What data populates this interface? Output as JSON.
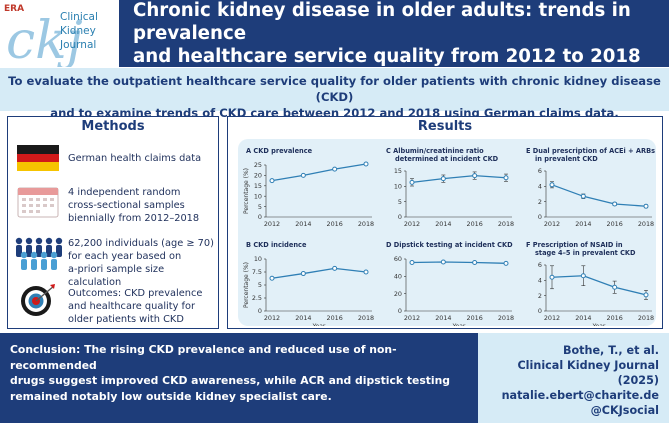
{
  "header": {
    "title_line1": "Chronic kidney disease in older adults: trends in prevalence",
    "title_line2": "and healthcare service quality from 2012 to 2018",
    "journal_line1": "Clinical",
    "journal_line2": "Kidney",
    "journal_line3": "Journal",
    "logo_letters": "ckj",
    "era_mark": "ERA"
  },
  "objective": {
    "line1": "To evaluate the outpatient healthcare service quality for older patients with chronic kidney disease (CKD)",
    "line2": "and to examine trends of CKD care between 2012 and 2018 using German claims data."
  },
  "methods": {
    "title": "Methods",
    "items": [
      {
        "icon": "germany-flag-icon",
        "lines": [
          "German health claims data"
        ]
      },
      {
        "icon": "calendar-icon",
        "lines": [
          "4 independent random",
          "cross-sectional samples",
          "biennially from 2012–2018"
        ]
      },
      {
        "icon": "people-group-icon",
        "lines": [
          "62,200 individuals (age ≥ 70)",
          "for each year based on",
          "a-priori sample size calculation"
        ]
      },
      {
        "icon": "target-icon",
        "lines": [
          "Outcomes: CKD prevalence",
          "and healthcare quality for",
          "older patients with CKD"
        ]
      }
    ]
  },
  "results": {
    "title": "Results"
  },
  "chart_data": [
    {
      "type": "line",
      "letter": "A",
      "title": [
        "CKD prevalence"
      ],
      "x": [
        2012,
        2014,
        2016,
        2018
      ],
      "values": [
        17.5,
        20,
        23,
        25.5
      ],
      "error": [
        0.3,
        0.3,
        0.3,
        0.3
      ],
      "ylabel": "Percentage (%)",
      "xlabel": "",
      "ylim": [
        0,
        25
      ],
      "yticks": [
        0,
        5,
        10,
        15,
        20,
        25
      ]
    },
    {
      "type": "line",
      "letter": "C",
      "title": [
        "Albumin/creatinine ratio",
        "determined at incident CKD"
      ],
      "x": [
        2012,
        2014,
        2016,
        2018
      ],
      "values": [
        11.3,
        12.5,
        13.5,
        12.8
      ],
      "error": [
        1.2,
        1.2,
        1.2,
        1.2
      ],
      "ylabel": "",
      "xlabel": "",
      "ylim": [
        0,
        15
      ],
      "yticks": [
        0,
        5,
        10,
        15
      ]
    },
    {
      "type": "line",
      "letter": "E",
      "title": [
        "Dual prescription of ACEi + ARBs",
        "in prevalent CKD"
      ],
      "x": [
        2012,
        2014,
        2016,
        2018
      ],
      "values": [
        4.2,
        2.7,
        1.7,
        1.4
      ],
      "error": [
        0.4,
        0.3,
        0.2,
        0.2
      ],
      "ylabel": "",
      "xlabel": "",
      "ylim": [
        0,
        6
      ],
      "yticks": [
        0,
        2,
        4,
        6
      ]
    },
    {
      "type": "line",
      "letter": "B",
      "title": [
        "CKD incidence"
      ],
      "x": [
        2012,
        2014,
        2016,
        2018
      ],
      "values": [
        6.3,
        7.2,
        8.2,
        7.5
      ],
      "error": [
        0.2,
        0.2,
        0.2,
        0.2
      ],
      "ylabel": "Percentage (%)",
      "xlabel": "Year",
      "ylim": [
        0,
        10
      ],
      "yticks": [
        0,
        2.5,
        5,
        7.5,
        10
      ]
    },
    {
      "type": "line",
      "letter": "D",
      "title": [
        "Dipstick testing at incident CKD"
      ],
      "x": [
        2012,
        2014,
        2016,
        2018
      ],
      "values": [
        56,
        56.5,
        56,
        55
      ],
      "error": [
        1,
        1,
        1,
        1
      ],
      "ylabel": "",
      "xlabel": "Year",
      "ylim": [
        0,
        60
      ],
      "yticks": [
        0,
        20,
        40,
        60
      ]
    },
    {
      "type": "line",
      "letter": "F",
      "title": [
        "Prescription of NSAID in",
        "stage 4–5 in prevalent CKD"
      ],
      "x": [
        2012,
        2014,
        2016,
        2018
      ],
      "values": [
        4.4,
        4.6,
        3.1,
        2.1
      ],
      "error": [
        1.5,
        1.3,
        0.8,
        0.6
      ],
      "ylabel": "",
      "xlabel": "Year",
      "ylim": [
        0,
        6
      ],
      "yticks": [
        0,
        2,
        4,
        6
      ]
    }
  ],
  "conclusion": {
    "line1": "Conclusion: The rising CKD prevalence and reduced use of non-recommended",
    "line2": "drugs suggest improved CKD awareness, while ACR and dipstick testing",
    "line3": "remained notably low outside kidney specialist care."
  },
  "citation": {
    "line1": "Bothe, T., et al.",
    "line2": "Clinical Kidney Journal (2025)",
    "line3": "natalie.ebert@charite.de",
    "line4": "@CKJsocial"
  },
  "colors": {
    "navy": "#1e3d7a",
    "light_blue": "#d6ebf6",
    "chart_bg": "#e2f0f8",
    "line": "#2f7fb5"
  }
}
